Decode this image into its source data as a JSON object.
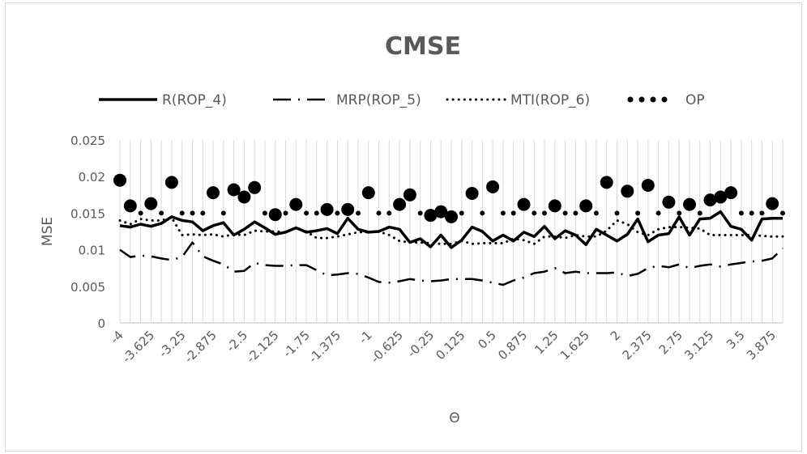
{
  "chart_data": {
    "type": "line",
    "title": "CMSE",
    "xlabel": "Θ",
    "ylabel": "MSE",
    "ylim": [
      0,
      0.025
    ],
    "yticks": [
      "0",
      "0.005",
      "0.01",
      "0.015",
      "0.02",
      "0.025"
    ],
    "grid": "vertical",
    "legend_position": "top",
    "x": [
      -4,
      -3.875,
      -3.75,
      -3.625,
      -3.5,
      -3.375,
      -3.25,
      -3.125,
      -3,
      -2.875,
      -2.75,
      -2.625,
      -2.5,
      -2.375,
      -2.25,
      -2.125,
      -2,
      -1.875,
      -1.75,
      -1.625,
      -1.5,
      -1.375,
      -1.25,
      -1.125,
      -1,
      -0.875,
      -0.75,
      -0.625,
      -0.5,
      -0.375,
      -0.25,
      -0.125,
      0,
      0.125,
      0.25,
      0.375,
      0.5,
      0.625,
      0.75,
      0.875,
      1,
      1.125,
      1.25,
      1.375,
      1.5,
      1.625,
      1.75,
      1.875,
      2,
      2.125,
      2.25,
      2.375,
      2.5,
      2.625,
      2.75,
      2.875,
      3,
      3.125,
      3.25,
      3.375,
      3.5,
      3.625,
      3.75,
      3.875,
      4
    ],
    "xtick_labels": [
      "-4",
      "-3.625",
      "-3.25",
      "-2.875",
      "-2.5",
      "-2.125",
      "-1.75",
      "-1.375",
      "-1",
      "-0.625",
      "-0.25",
      "0.125",
      "0.5",
      "0.875",
      "1.25",
      "1.625",
      "2",
      "2.375",
      "2.75",
      "3.125",
      "3.5",
      "3.875"
    ],
    "series": [
      {
        "name": "R(ROP_4)",
        "style": "solid",
        "color": "#000000",
        "values": [
          0.0133,
          0.0131,
          0.0135,
          0.0132,
          0.0136,
          0.0145,
          0.014,
          0.0138,
          0.0126,
          0.0133,
          0.0137,
          0.012,
          0.0128,
          0.0138,
          0.013,
          0.0121,
          0.0124,
          0.013,
          0.0124,
          0.0126,
          0.0129,
          0.0122,
          0.0143,
          0.0128,
          0.0124,
          0.0125,
          0.0131,
          0.0128,
          0.011,
          0.0115,
          0.0104,
          0.012,
          0.0103,
          0.0113,
          0.0131,
          0.0125,
          0.0112,
          0.012,
          0.0112,
          0.0124,
          0.0118,
          0.0132,
          0.0115,
          0.0126,
          0.012,
          0.0107,
          0.0128,
          0.012,
          0.0112,
          0.0121,
          0.0142,
          0.0111,
          0.012,
          0.0122,
          0.0145,
          0.012,
          0.0142,
          0.0143,
          0.0152,
          0.0132,
          0.0128,
          0.0113,
          0.0142,
          0.0143,
          0.0143
        ]
      },
      {
        "name": "MRP(ROP_5)",
        "style": "dashdot",
        "color": "#000000",
        "values": [
          0.01,
          0.009,
          0.0092,
          0.0091,
          0.0088,
          0.0086,
          0.009,
          0.011,
          0.0091,
          0.0085,
          0.008,
          0.007,
          0.0071,
          0.0082,
          0.0079,
          0.0078,
          0.0078,
          0.0079,
          0.0079,
          0.0072,
          0.0065,
          0.0066,
          0.0068,
          0.0067,
          0.0062,
          0.0056,
          0.0055,
          0.0057,
          0.006,
          0.0058,
          0.0057,
          0.0058,
          0.006,
          0.006,
          0.006,
          0.0058,
          0.0055,
          0.0052,
          0.0058,
          0.0062,
          0.0068,
          0.007,
          0.0075,
          0.0068,
          0.007,
          0.0068,
          0.0068,
          0.0068,
          0.0069,
          0.0064,
          0.0067,
          0.0075,
          0.0078,
          0.0076,
          0.008,
          0.0075,
          0.0078,
          0.008,
          0.0077,
          0.008,
          0.0082,
          0.0084,
          0.0085,
          0.0088,
          0.0102
        ]
      },
      {
        "name": "MTI(ROP_6)",
        "style": "dotted",
        "color": "#000000",
        "values": [
          0.014,
          0.0135,
          0.0142,
          0.014,
          0.014,
          0.0144,
          0.012,
          0.0121,
          0.012,
          0.0121,
          0.0118,
          0.0121,
          0.012,
          0.0126,
          0.0125,
          0.0125,
          0.0124,
          0.013,
          0.0125,
          0.0116,
          0.0116,
          0.0118,
          0.0121,
          0.0124,
          0.0124,
          0.0125,
          0.012,
          0.0112,
          0.011,
          0.011,
          0.0109,
          0.0108,
          0.0108,
          0.0112,
          0.0108,
          0.0109,
          0.0109,
          0.0109,
          0.0115,
          0.0113,
          0.0108,
          0.0118,
          0.0118,
          0.0116,
          0.012,
          0.0118,
          0.0118,
          0.0126,
          0.014,
          0.0135,
          0.0124,
          0.012,
          0.0128,
          0.0131,
          0.0131,
          0.013,
          0.0129,
          0.012,
          0.012,
          0.012,
          0.012,
          0.012,
          0.0119,
          0.0118,
          0.0118
        ]
      },
      {
        "name": "OP",
        "style": "large-dots",
        "color": "#000000",
        "values": [
          0.0195,
          0.016,
          0.015,
          0.0163,
          0.015,
          0.0192,
          0.015,
          0.015,
          0.015,
          0.0178,
          0.015,
          0.0182,
          0.0172,
          0.0185,
          0.015,
          0.0148,
          0.015,
          0.0162,
          0.015,
          0.015,
          0.0155,
          0.015,
          0.0155,
          0.015,
          0.0178,
          0.015,
          0.015,
          0.0162,
          0.0175,
          0.015,
          0.0147,
          0.0152,
          0.0145,
          0.015,
          0.0177,
          0.015,
          0.0186,
          0.015,
          0.015,
          0.0162,
          0.015,
          0.015,
          0.016,
          0.015,
          0.015,
          0.016,
          0.015,
          0.0192,
          0.015,
          0.018,
          0.015,
          0.0188,
          0.015,
          0.0165,
          0.015,
          0.0162,
          0.015,
          0.0168,
          0.0172,
          0.0178,
          0.015,
          0.015,
          0.015,
          0.0163,
          0.015
        ]
      }
    ],
    "op_highlight_indices": [
      0,
      1,
      3,
      5,
      9,
      11,
      12,
      13,
      15,
      17,
      20,
      22,
      24,
      27,
      28,
      30,
      31,
      32,
      34,
      36,
      39,
      42,
      45,
      47,
      49,
      51,
      53,
      55,
      57,
      58,
      59,
      63
    ]
  }
}
